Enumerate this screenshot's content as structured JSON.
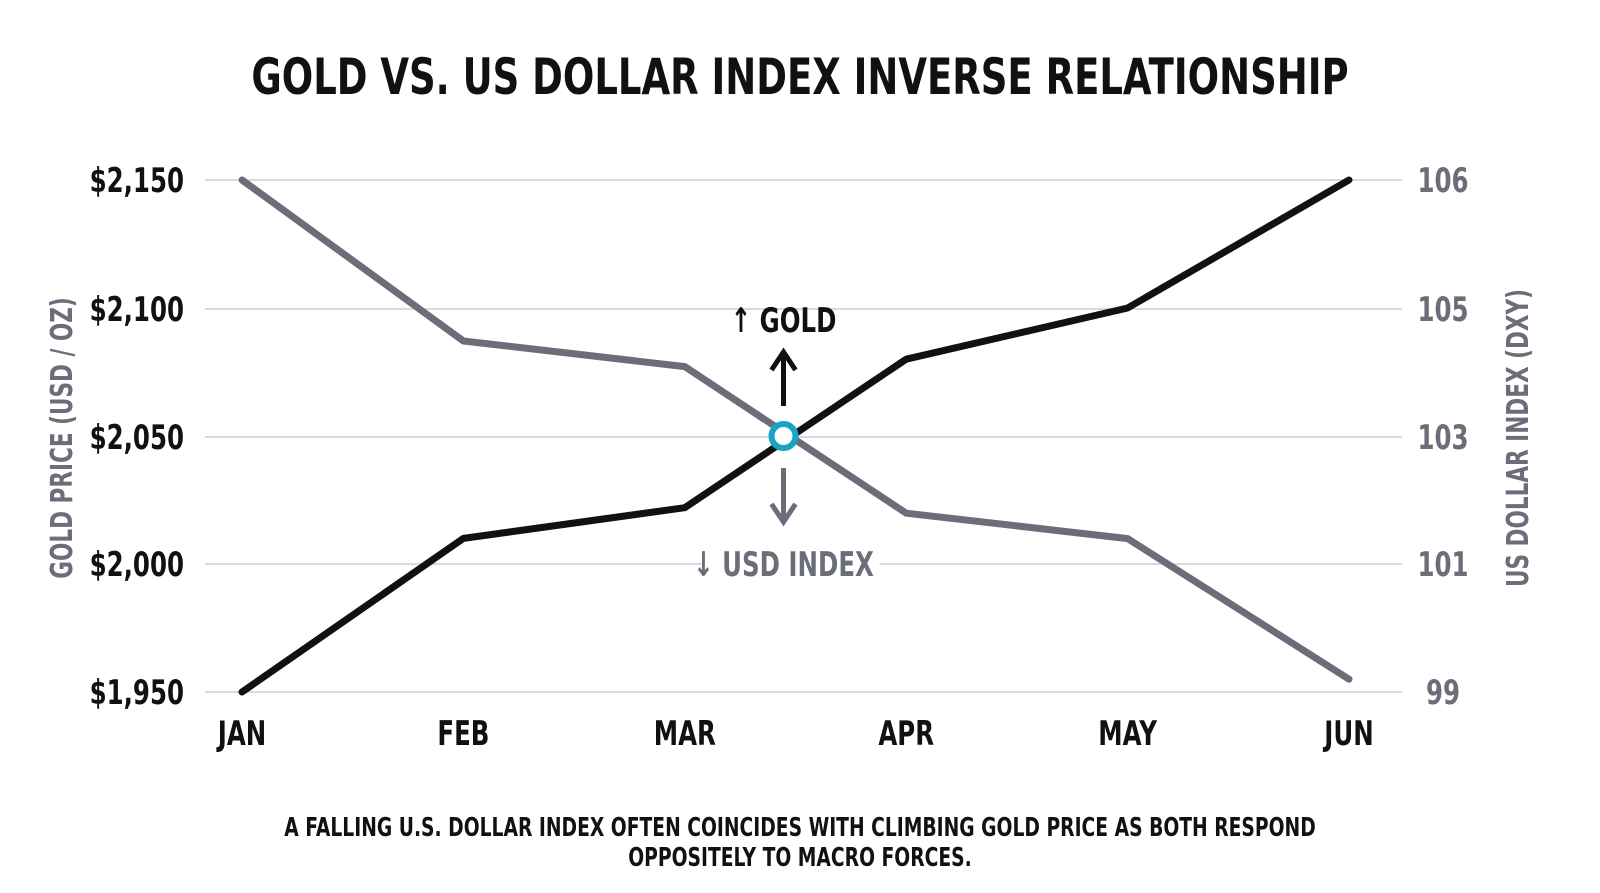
{
  "title": "GOLD VS. US DOLLAR INDEX INVERSE RELATIONSHIP",
  "caption": "A FALLING U.S. DOLLAR INDEX OFTEN COINCIDES WITH CLIMBING GOLD PRICE AS BOTH RESPOND OPPOSITELY TO MACRO FORCES.",
  "colors": {
    "gold": "#111111",
    "usd": "#6b6e79",
    "grid": "#d9dadd",
    "marker": "#1aa3c4",
    "axis_label": "#6b6e79"
  },
  "chart_data": {
    "type": "line",
    "title": "GOLD VS. US DOLLAR INDEX INVERSE RELATIONSHIP",
    "categories": [
      "JAN",
      "FEB",
      "MAR",
      "APR",
      "MAY",
      "JUN"
    ],
    "y_left": {
      "label": "GOLD PRICE (USD / OZ)",
      "ticks": [
        "$1,950",
        "$2,000",
        "$2,050",
        "$2,100",
        "$2,150"
      ],
      "range": [
        1950,
        2150
      ]
    },
    "y_right": {
      "label": "US DOLLAR INDEX (DXY)",
      "ticks": [
        "99",
        "101",
        "103",
        "105",
        "106"
      ]
    },
    "grid": true,
    "series": [
      {
        "key": "gold",
        "axis": "left",
        "values": [
          1950,
          2010,
          2022,
          2080,
          2100,
          2150
        ]
      },
      {
        "key": "usd",
        "axis": "right",
        "values": [
          106,
          104.5,
          104.1,
          101.8,
          101.4,
          99.2
        ]
      }
    ],
    "crossover": {
      "x_between": [
        "MAR",
        "APR"
      ],
      "gold_value": 2050,
      "usd_value": 103
    },
    "annotations": {
      "gold_up": "↑ GOLD",
      "usd_down": "↓ USD INDEX"
    }
  }
}
